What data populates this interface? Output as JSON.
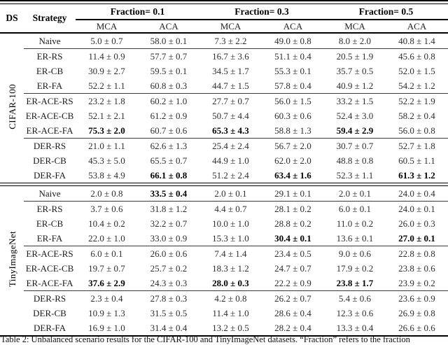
{
  "table": {
    "header": {
      "ds": "DS",
      "strategy": "Strategy",
      "fractions": [
        "Fraction= 0.1",
        "Fraction= 0.3",
        "Fraction= 0.5"
      ],
      "subcols": [
        "MCA",
        "ACA"
      ]
    },
    "groups": [
      {
        "dataset": "CIFAR-100",
        "rows": [
          {
            "strategy": "Naive",
            "values": [
              "5.0 ± 0.7",
              "58.0 ± 0.1",
              "7.3 ± 2.2",
              "49.0 ± 0.8",
              "8.0 ± 2.0",
              "40.8 ± 1.4"
            ],
            "bold": [],
            "rule_after": true
          },
          {
            "strategy": "ER-RS",
            "values": [
              "11.4 ± 0.9",
              "57.7 ± 0.7",
              "16.7 ± 3.6",
              "51.1 ± 0.4",
              "20.5 ± 1.9",
              "45.6 ± 0.8"
            ],
            "bold": [],
            "rule_after": false
          },
          {
            "strategy": "ER-CB",
            "values": [
              "30.9 ± 2.7",
              "59.5 ± 0.1",
              "34.5 ± 1.7",
              "55.3 ± 0.1",
              "35.7 ± 0.5",
              "52.0 ± 1.5"
            ],
            "bold": [],
            "rule_after": false
          },
          {
            "strategy": "ER-FA",
            "values": [
              "52.2 ± 1.1",
              "60.8 ± 0.3",
              "44.7 ± 1.5",
              "57.8 ± 0.4",
              "40.9 ± 1.2",
              "54.2 ± 1.2"
            ],
            "bold": [],
            "rule_after": true
          },
          {
            "strategy": "ER-ACE-RS",
            "values": [
              "23.2 ± 1.8",
              "60.2 ± 1.0",
              "27.7 ± 0.7",
              "56.0 ± 1.5",
              "33.2 ± 1.5",
              "52.2 ± 1.9"
            ],
            "bold": [],
            "rule_after": false
          },
          {
            "strategy": "ER-ACE-CB",
            "values": [
              "52.1 ± 2.1",
              "61.2 ± 0.9",
              "50.7 ± 4.4",
              "60.3 ± 0.6",
              "52.4 ± 3.0",
              "58.2 ± 0.4"
            ],
            "bold": [],
            "rule_after": false
          },
          {
            "strategy": "ER-ACE-FA",
            "values": [
              "75.3 ± 2.0",
              "60.7 ± 0.6",
              "65.3 ± 4.3",
              "58.8 ± 1.3",
              "59.4 ± 2.9",
              "56.0 ± 0.8"
            ],
            "bold": [
              0,
              2,
              4
            ],
            "rule_after": true
          },
          {
            "strategy": "DER-RS",
            "values": [
              "21.0 ± 1.1",
              "62.6 ± 1.3",
              "25.4 ± 2.4",
              "56.7 ± 2.0",
              "30.7 ± 0.7",
              "52.7 ± 1.8"
            ],
            "bold": [],
            "rule_after": false
          },
          {
            "strategy": "DER-CB",
            "values": [
              "45.3 ± 5.0",
              "65.5 ± 0.7",
              "44.9 ± 1.0",
              "62.0 ± 2.0",
              "48.8 ± 0.8",
              "60.5 ± 1.1"
            ],
            "bold": [],
            "rule_after": false
          },
          {
            "strategy": "DER-FA",
            "values": [
              "53.8 ± 4.9",
              "66.1 ± 0.8",
              "51.2 ± 2.4",
              "63.4 ± 1.6",
              "52.3 ± 1.1",
              "61.3 ± 1.2"
            ],
            "bold": [
              1,
              3,
              5
            ],
            "rule_after": false
          }
        ]
      },
      {
        "dataset": "TinyImageNet",
        "rows": [
          {
            "strategy": "Naive",
            "values": [
              "2.0 ± 0.8",
              "33.5 ± 0.4",
              "2.0 ± 0.1",
              "29.1 ± 0.1",
              "2.0 ± 0.1",
              "24.0 ± 0.4"
            ],
            "bold": [
              1
            ],
            "rule_after": true
          },
          {
            "strategy": "ER-RS",
            "values": [
              "3.7 ± 0.6",
              "31.8 ± 1.2",
              "4.4 ± 0.7",
              "28.1 ± 0.2",
              "6.0 ± 0.1",
              "24.0 ± 0.1"
            ],
            "bold": [],
            "rule_after": false
          },
          {
            "strategy": "ER-CB",
            "values": [
              "10.4 ± 0.2",
              "32.2 ± 0.7",
              "10.0 ± 1.0",
              "28.8 ± 0.2",
              "11.0 ± 0.2",
              "26.0 ± 0.3"
            ],
            "bold": [],
            "rule_after": false
          },
          {
            "strategy": "ER-FA",
            "values": [
              "22.0 ± 1.0",
              "33.0 ± 0.9",
              "15.3 ± 1.0",
              "30.4 ± 0.1",
              "13.6 ± 0.1",
              "27.0 ± 0.1"
            ],
            "bold": [
              3,
              5
            ],
            "rule_after": true
          },
          {
            "strategy": "ER-ACE-RS",
            "values": [
              "6.0 ± 0.1",
              "26.0 ± 0.6",
              "7.4 ± 1.4",
              "23.4 ± 0.5",
              "9.0 ± 0.6",
              "22.8 ± 0.8"
            ],
            "bold": [],
            "rule_after": false
          },
          {
            "strategy": "ER-ACE-CB",
            "values": [
              "19.7 ± 0.7",
              "25.7 ± 0.2",
              "18.3 ± 1.2",
              "24.7 ± 0.7",
              "17.9 ± 0.2",
              "23.8 ± 0.6"
            ],
            "bold": [],
            "rule_after": false
          },
          {
            "strategy": "ER-ACE-FA",
            "values": [
              "37.6 ± 2.9",
              "24.3 ± 0.3",
              "28.0 ± 0.3",
              "22.2 ± 0.9",
              "23.8 ± 1.7",
              "23.9 ± 0.2"
            ],
            "bold": [
              0,
              2,
              4
            ],
            "rule_after": true
          },
          {
            "strategy": "DER-RS",
            "values": [
              "2.3 ± 0.4",
              "27.8 ± 0.3",
              "4.2 ± 0.8",
              "26.2 ± 0.7",
              "5.4 ± 0.6",
              "23.6 ± 0.9"
            ],
            "bold": [],
            "rule_after": false
          },
          {
            "strategy": "DER-CB",
            "values": [
              "10.9 ± 1.3",
              "31.5 ± 0.5",
              "11.4 ± 1.0",
              "28.6 ± 0.4",
              "12.3 ± 0.6",
              "26.9 ± 0.8"
            ],
            "bold": [],
            "rule_after": false
          },
          {
            "strategy": "DER-FA",
            "values": [
              "16.9 ± 1.0",
              "31.4 ± 0.4",
              "13.2 ± 0.5",
              "28.2 ± 0.4",
              "13.3 ± 0.4",
              "26.6 ± 0.6"
            ],
            "bold": [],
            "rule_after": false
          }
        ]
      }
    ]
  },
  "caption": "Table 2: Unbalanced scenario results for the CIFAR-100 and TinyImageNet datasets. “Fraction” refers to the fraction"
}
